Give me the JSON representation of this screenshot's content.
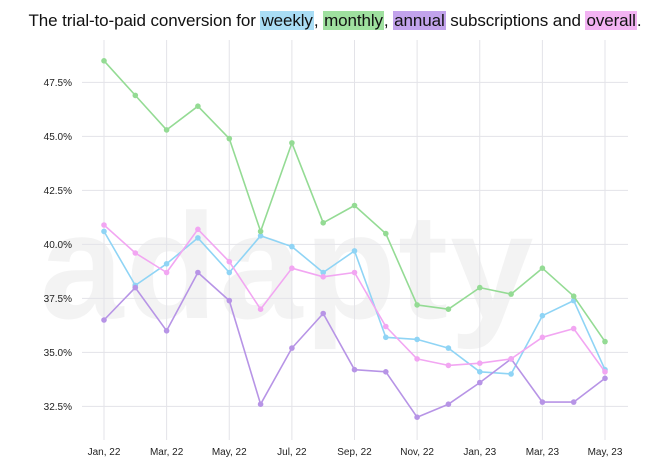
{
  "title": {
    "prefix": "The trial-to-paid conversion for ",
    "weekly": "weekly",
    "sep1": ", ",
    "monthly": "monthly",
    "sep2": ", ",
    "annual": "annual",
    "mid": " subscriptions and ",
    "overall": "overall",
    "end": "."
  },
  "watermark": "adapty",
  "colors": {
    "weekly": "#8fd4f5",
    "monthly": "#94db94",
    "annual": "#b794e6",
    "overall": "#f2a6f2",
    "weekly_hl": "#a9ddf5",
    "monthly_hl": "#9fe09f",
    "annual_hl": "#c2a3ec",
    "overall_hl": "#f3b3f3"
  },
  "chart_data": {
    "type": "line",
    "x": [
      "Jan, 22",
      "Feb, 22",
      "Mar, 22",
      "Apr, 22",
      "May, 22",
      "Jun, 22",
      "Jul, 22",
      "Aug, 22",
      "Sep, 22",
      "Oct, 22",
      "Nov, 22",
      "Dec, 22",
      "Jan, 23",
      "Feb, 23",
      "Mar, 23",
      "Apr, 23",
      "May, 23"
    ],
    "xticks": [
      "Jan, 22",
      "Mar, 22",
      "May, 22",
      "Jul, 22",
      "Sep, 22",
      "Nov, 22",
      "Jan, 23",
      "Mar, 23",
      "May, 23"
    ],
    "yticks": [
      "32.5%",
      "35.0%",
      "37.5%",
      "40.0%",
      "42.5%",
      "45.0%",
      "47.5%"
    ],
    "ytick_values": [
      32.5,
      35.0,
      37.5,
      40.0,
      42.5,
      45.0,
      47.5
    ],
    "ylim": [
      31.5,
      49.0
    ],
    "grid": true,
    "series": [
      {
        "name": "weekly",
        "color": "#8fd4f5",
        "values": [
          40.6,
          38.1,
          39.1,
          40.3,
          38.7,
          40.4,
          39.9,
          38.7,
          39.7,
          35.7,
          35.6,
          35.2,
          34.1,
          34.0,
          36.7,
          37.4,
          34.2
        ]
      },
      {
        "name": "monthly",
        "color": "#94db94",
        "values": [
          48.5,
          46.9,
          45.3,
          46.4,
          44.9,
          40.6,
          44.7,
          41.0,
          41.8,
          40.5,
          37.2,
          37.0,
          38.0,
          37.7,
          38.9,
          37.6,
          35.5
        ]
      },
      {
        "name": "annual",
        "color": "#b794e6",
        "values": [
          36.5,
          38.0,
          36.0,
          38.7,
          37.4,
          32.6,
          35.2,
          36.8,
          34.2,
          34.1,
          32.0,
          32.6,
          33.6,
          34.7,
          32.7,
          32.7,
          33.8
        ]
      },
      {
        "name": "overall",
        "color": "#f2a6f2",
        "values": [
          40.9,
          39.6,
          38.7,
          40.7,
          39.2,
          37.0,
          38.9,
          38.5,
          38.7,
          36.2,
          34.7,
          34.4,
          34.5,
          34.7,
          35.7,
          36.1,
          34.1
        ]
      }
    ]
  }
}
